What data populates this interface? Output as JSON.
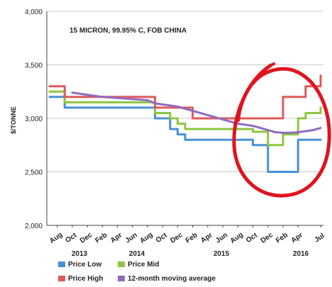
{
  "chart_data": {
    "type": "line",
    "annotation": "15 MICRON, 99.95% C, FOB CHINA",
    "ylabel": "$/TONNE",
    "ylim": [
      2000,
      4000
    ],
    "yticks": [
      "2,000",
      "2,500",
      "3,000",
      "3,500",
      "4,000"
    ],
    "yticks_values": [
      2000,
      2500,
      3000,
      3500,
      4000
    ],
    "xtick_labels": [
      "Aug",
      "Oct",
      "Dec",
      "Feb",
      "Apr",
      "Jun",
      "Aug",
      "Oct",
      "Dec",
      "Feb",
      "Apr",
      "Jun",
      "Aug",
      "Oct",
      "Dec",
      "Feb",
      "Apr",
      "Jul"
    ],
    "year_labels": [
      "2013",
      "2014",
      "2015",
      "2016"
    ],
    "grid": "horizontal",
    "legend_position": "bottom",
    "series": [
      {
        "name": "Price Low",
        "color": "#4a90d9",
        "x": [
          "2013-07",
          "2013-08",
          "2013-09",
          "2013-10",
          "2013-11",
          "2013-12",
          "2014-01",
          "2014-02",
          "2014-03",
          "2014-04",
          "2014-05",
          "2014-06",
          "2014-07",
          "2014-08",
          "2014-09",
          "2014-10",
          "2014-11",
          "2014-12",
          "2015-01",
          "2015-02",
          "2015-03",
          "2015-04",
          "2015-05",
          "2015-06",
          "2015-07",
          "2015-08",
          "2015-09",
          "2015-10",
          "2015-11",
          "2015-12",
          "2016-01",
          "2016-02",
          "2016-03",
          "2016-04",
          "2016-05",
          "2016-06",
          "2016-07"
        ],
        "values": [
          3200,
          3200,
          3100,
          3100,
          3100,
          3100,
          3100,
          3100,
          3100,
          3100,
          3100,
          3100,
          3100,
          3100,
          3000,
          3000,
          2900,
          2850,
          2800,
          2800,
          2800,
          2800,
          2800,
          2800,
          2800,
          2800,
          2800,
          2750,
          2750,
          2500,
          2500,
          2500,
          2500,
          2800,
          2800,
          2800,
          2800
        ]
      },
      {
        "name": "Price Mid",
        "color": "#8dc63f",
        "x": [
          "2013-07",
          "2013-08",
          "2013-09",
          "2013-10",
          "2013-11",
          "2013-12",
          "2014-01",
          "2014-02",
          "2014-03",
          "2014-04",
          "2014-05",
          "2014-06",
          "2014-07",
          "2014-08",
          "2014-09",
          "2014-10",
          "2014-11",
          "2014-12",
          "2015-01",
          "2015-02",
          "2015-03",
          "2015-04",
          "2015-05",
          "2015-06",
          "2015-07",
          "2015-08",
          "2015-09",
          "2015-10",
          "2015-11",
          "2015-12",
          "2016-01",
          "2016-02",
          "2016-03",
          "2016-04",
          "2016-05",
          "2016-06",
          "2016-07"
        ],
        "values": [
          3250,
          3250,
          3150,
          3150,
          3150,
          3150,
          3150,
          3150,
          3150,
          3150,
          3150,
          3150,
          3150,
          3150,
          3050,
          3050,
          3000,
          2950,
          2900,
          2900,
          2900,
          2900,
          2900,
          2900,
          2900,
          2900,
          2900,
          2875,
          2875,
          2750,
          2750,
          2850,
          2850,
          3000,
          3050,
          3050,
          3100
        ]
      },
      {
        "name": "Price High",
        "color": "#e05a5a",
        "x": [
          "2013-07",
          "2013-08",
          "2013-09",
          "2013-10",
          "2013-11",
          "2013-12",
          "2014-01",
          "2014-02",
          "2014-03",
          "2014-04",
          "2014-05",
          "2014-06",
          "2014-07",
          "2014-08",
          "2014-09",
          "2014-10",
          "2014-11",
          "2014-12",
          "2015-01",
          "2015-02",
          "2015-03",
          "2015-04",
          "2015-05",
          "2015-06",
          "2015-07",
          "2015-08",
          "2015-09",
          "2015-10",
          "2015-11",
          "2015-12",
          "2016-01",
          "2016-02",
          "2016-03",
          "2016-04",
          "2016-05",
          "2016-06",
          "2016-07"
        ],
        "values": [
          3300,
          3300,
          3200,
          3200,
          3200,
          3200,
          3200,
          3200,
          3200,
          3200,
          3200,
          3200,
          3200,
          3200,
          3100,
          3100,
          3100,
          3100,
          3100,
          3000,
          3000,
          3000,
          3000,
          3000,
          3000,
          3000,
          3000,
          3000,
          3000,
          3000,
          3000,
          3200,
          3200,
          3200,
          3300,
          3300,
          3400
        ]
      },
      {
        "name": "12-month moving average",
        "color": "#8e6bbf",
        "x": [
          "2013-10",
          "2013-11",
          "2013-12",
          "2014-01",
          "2014-02",
          "2014-03",
          "2014-04",
          "2014-05",
          "2014-06",
          "2014-07",
          "2014-08",
          "2014-09",
          "2014-10",
          "2014-11",
          "2014-12",
          "2015-01",
          "2015-02",
          "2015-03",
          "2015-04",
          "2015-05",
          "2015-06",
          "2015-07",
          "2015-08",
          "2015-09",
          "2015-10",
          "2015-11",
          "2015-12",
          "2016-01",
          "2016-02",
          "2016-03",
          "2016-04",
          "2016-05",
          "2016-06",
          "2016-07"
        ],
        "values": [
          3240,
          3230,
          3220,
          3210,
          3200,
          3195,
          3190,
          3185,
          3180,
          3175,
          3170,
          3140,
          3130,
          3120,
          3110,
          3090,
          3070,
          3050,
          3030,
          3010,
          2990,
          2970,
          2950,
          2940,
          2930,
          2910,
          2890,
          2870,
          2865,
          2865,
          2870,
          2880,
          2890,
          2910
        ]
      }
    ]
  },
  "decoration": {
    "circle_color": "#e0141e"
  }
}
